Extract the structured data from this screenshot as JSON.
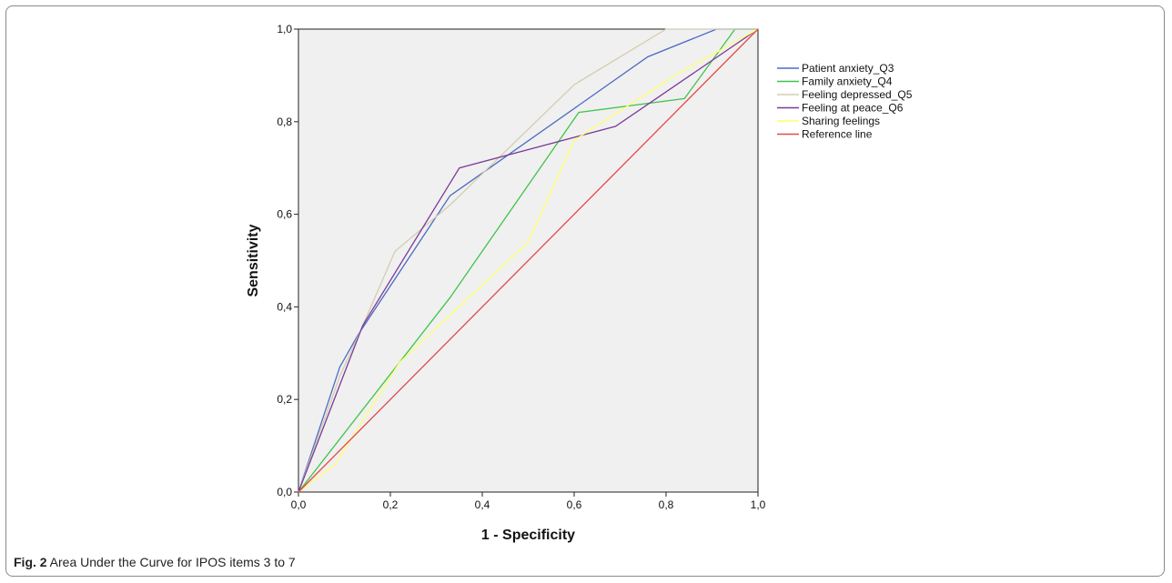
{
  "caption": {
    "label": "Fig. 2",
    "text": " Area Under the Curve for IPOS items 3 to 7"
  },
  "chart_data": {
    "type": "line",
    "xlabel": "1 - Specificity",
    "ylabel": "Sensitivity",
    "xlim": [
      0,
      1
    ],
    "ylim": [
      0,
      1
    ],
    "xticks": [
      "0,0",
      "0,2",
      "0,4",
      "0,6",
      "0,8",
      "1,0"
    ],
    "yticks": [
      "0,0",
      "0,2",
      "0,4",
      "0,6",
      "0,8",
      "1,0"
    ],
    "background": "#f0f0f0",
    "grid": false,
    "legend_position": "right",
    "series": [
      {
        "name": "Patient anxiety_Q3",
        "color": "#4a6bc4",
        "points": [
          [
            0,
            0
          ],
          [
            0.09,
            0.27
          ],
          [
            0.13,
            0.34
          ],
          [
            0.33,
            0.64
          ],
          [
            0.76,
            0.94
          ],
          [
            0.91,
            1.0
          ],
          [
            1.0,
            1.0
          ]
        ]
      },
      {
        "name": "Family anxiety_Q4",
        "color": "#3ec44a",
        "points": [
          [
            0,
            0
          ],
          [
            0.33,
            0.42
          ],
          [
            0.61,
            0.82
          ],
          [
            0.84,
            0.85
          ],
          [
            0.95,
            1.0
          ],
          [
            1.0,
            1.0
          ]
        ]
      },
      {
        "name": "Feeling depressed_Q5",
        "color": "#d4cdb0",
        "points": [
          [
            0,
            0
          ],
          [
            0.09,
            0.25
          ],
          [
            0.14,
            0.36
          ],
          [
            0.21,
            0.52
          ],
          [
            0.33,
            0.62
          ],
          [
            0.6,
            0.88
          ],
          [
            0.8,
            1.0
          ],
          [
            1.0,
            1.0
          ]
        ]
      },
      {
        "name": "Feeling at peace_Q6",
        "color": "#7b3a99",
        "points": [
          [
            0,
            0
          ],
          [
            0.14,
            0.36
          ],
          [
            0.35,
            0.7
          ],
          [
            0.69,
            0.79
          ],
          [
            1.0,
            1.0
          ]
        ]
      },
      {
        "name": "Sharing feelings",
        "color": "#ffff70",
        "points": [
          [
            0,
            0
          ],
          [
            0.08,
            0.06
          ],
          [
            0.22,
            0.28
          ],
          [
            0.5,
            0.54
          ],
          [
            0.6,
            0.76
          ],
          [
            0.82,
            0.9
          ],
          [
            1.0,
            1.0
          ]
        ]
      },
      {
        "name": "Reference line",
        "color": "#e8484a",
        "points": [
          [
            0,
            0
          ],
          [
            1,
            1
          ]
        ]
      }
    ]
  }
}
